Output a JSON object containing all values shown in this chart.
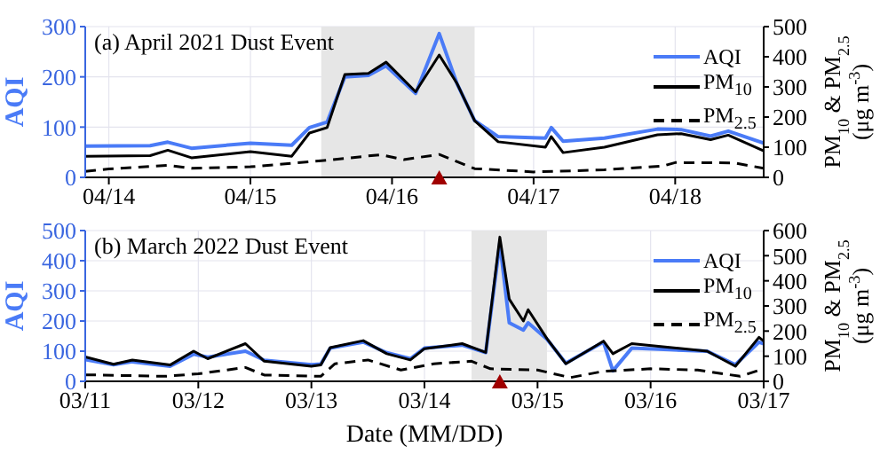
{
  "chart_data": [
    {
      "type": "line",
      "title": "(a) April 2021 Dust Event",
      "ylabel": "AQI",
      "y2label": "PM$_{10}$ & PM$_{2.5}$ (μg m$^{-3}$)",
      "xlim": [
        "2021-04-13T20:00",
        "2021-04-18T15:00"
      ],
      "xticks": [
        {
          "value": "2021-04-14",
          "label": "04/14"
        },
        {
          "value": "2021-04-15",
          "label": "04/15"
        },
        {
          "value": "2021-04-16",
          "label": "04/16"
        },
        {
          "value": "2021-04-17",
          "label": "04/17"
        },
        {
          "value": "2021-04-18",
          "label": "04/18"
        }
      ],
      "ylim": [
        0,
        300
      ],
      "yticks": [
        0,
        100,
        200,
        300
      ],
      "y2lim": [
        0,
        500
      ],
      "y2ticks": [
        0,
        100,
        200,
        300,
        400,
        500
      ],
      "grid": true,
      "legend": "top right",
      "marker": "none",
      "bands": [
        {
          "axis": "x",
          "from": "2021-04-15T12:00",
          "to": "2021-04-16T14:00",
          "color": "#e6e6e6"
        }
      ],
      "series": [
        {
          "name": "AQI",
          "color": "#4a7bf7",
          "line_style": "solid",
          "x": [
            "2021-04-13T20:00",
            "2021-04-14T07:00",
            "2021-04-14T10:00",
            "2021-04-14T14:00",
            "2021-04-15T00:00",
            "2021-04-15T07:00",
            "2021-04-15T10:00",
            "2021-04-15T13:00",
            "2021-04-15T16:00",
            "2021-04-15T20:00",
            "2021-04-15T23:00",
            "2021-04-16T04:00",
            "2021-04-16T08:00",
            "2021-04-16T11:00",
            "2021-04-16T14:00",
            "2021-04-16T18:00",
            "2021-04-17T02:00",
            "2021-04-17T03:00",
            "2021-04-17T05:00",
            "2021-04-17T12:00",
            "2021-04-17T21:00",
            "2021-04-18T01:00",
            "2021-04-18T06:00",
            "2021-04-18T09:00",
            "2021-04-18T15:00"
          ],
          "values": [
            62,
            63,
            70,
            58,
            68,
            64,
            99,
            110,
            200,
            203,
            222,
            167,
            286,
            187,
            113,
            81,
            78,
            99,
            72,
            78,
            96,
            95,
            82,
            92,
            68
          ]
        },
        {
          "name": "PM$_{10}$",
          "color": "#000000",
          "axis": "y2",
          "line_style": "solid",
          "x": [
            "2021-04-13T20:00",
            "2021-04-14T07:00",
            "2021-04-14T10:00",
            "2021-04-14T14:00",
            "2021-04-15T00:00",
            "2021-04-15T07:00",
            "2021-04-15T10:00",
            "2021-04-15T13:00",
            "2021-04-15T16:00",
            "2021-04-15T20:00",
            "2021-04-15T23:00",
            "2021-04-16T04:00",
            "2021-04-16T08:00",
            "2021-04-16T11:00",
            "2021-04-16T14:00",
            "2021-04-16T18:00",
            "2021-04-17T02:00",
            "2021-04-17T03:00",
            "2021-04-17T05:00",
            "2021-04-17T12:00",
            "2021-04-17T21:00",
            "2021-04-18T01:00",
            "2021-04-18T06:00",
            "2021-04-18T09:00",
            "2021-04-18T15:00"
          ],
          "values": [
            70,
            72,
            90,
            65,
            85,
            70,
            147,
            165,
            341,
            345,
            382,
            284,
            406,
            312,
            188,
            118,
            100,
            135,
            82,
            100,
            141,
            145,
            125,
            140,
            88
          ]
        },
        {
          "name": "PM$_{2.5}$",
          "color": "#000000",
          "axis": "y2",
          "line_style": "dashed",
          "x": [
            "2021-04-13T20:00",
            "2021-04-14T00:00",
            "2021-04-14T10:00",
            "2021-04-14T14:00",
            "2021-04-15T00:00",
            "2021-04-15T12:00",
            "2021-04-15T22:00",
            "2021-04-16T02:00",
            "2021-04-16T08:00",
            "2021-04-16T14:00",
            "2021-04-17T00:00",
            "2021-04-17T12:00",
            "2021-04-17T22:00",
            "2021-04-18T00:00",
            "2021-04-18T10:00",
            "2021-04-18T15:00"
          ],
          "values": [
            20,
            28,
            40,
            30,
            35,
            55,
            75,
            59,
            76,
            29,
            18,
            25,
            38,
            49,
            48,
            30
          ]
        },
        {
          "type": "scatter",
          "marker": "triangle",
          "color": "#a00000",
          "x": [
            "2021-04-16T08:00"
          ],
          "values": [
            0
          ]
        }
      ]
    },
    {
      "type": "line",
      "title": "(b) March 2022 Dust Event",
      "xlabel": "Date (MM/DD)",
      "ylabel": "AQI",
      "y2label": "PM$_{10}$ & PM$_{2.5}$ (μg m$^{-3}$)",
      "xlim": [
        "2022-03-11",
        "2022-03-17"
      ],
      "xticks": [
        {
          "value": "2022-03-11",
          "label": "03/11"
        },
        {
          "value": "2022-03-12",
          "label": "03/12"
        },
        {
          "value": "2022-03-13",
          "label": "03/13"
        },
        {
          "value": "2022-03-14",
          "label": "03/14"
        },
        {
          "value": "2022-03-15",
          "label": "03/15"
        },
        {
          "value": "2022-03-16",
          "label": "03/16"
        },
        {
          "value": "2022-03-17",
          "label": "03/17"
        }
      ],
      "ylim": [
        0,
        500
      ],
      "yticks": [
        0,
        100,
        200,
        300,
        400,
        500
      ],
      "y2lim": [
        0,
        600
      ],
      "y2ticks": [
        0,
        100,
        200,
        300,
        400,
        500,
        600
      ],
      "grid": true,
      "legend": "top right",
      "marker": "none",
      "bands": [
        {
          "axis": "x",
          "from": "2022-03-14T10:00",
          "to": "2022-03-15T02:00",
          "color": "#e6e6e6"
        }
      ],
      "series": [
        {
          "name": "AQI",
          "color": "#4a7bf7",
          "line_style": "solid",
          "x": [
            "2022-03-11T00:00",
            "2022-03-11T06:00",
            "2022-03-11T10:00",
            "2022-03-11T18:00",
            "2022-03-11T23:00",
            "2022-03-12T02:00",
            "2022-03-12T10:00",
            "2022-03-12T14:00",
            "2022-03-13T00:00",
            "2022-03-13T02:00",
            "2022-03-13T04:00",
            "2022-03-13T11:00",
            "2022-03-13T16:00",
            "2022-03-13T21:00",
            "2022-03-14T00:00",
            "2022-03-14T08:00",
            "2022-03-14T13:00",
            "2022-03-14T16:00",
            "2022-03-14T18:00",
            "2022-03-14T21:00",
            "2022-03-14T22:00",
            "2022-03-15T02:00",
            "2022-03-15T06:00",
            "2022-03-15T14:00",
            "2022-03-15T16:00",
            "2022-03-15T20:00",
            "2022-03-16T04:00",
            "2022-03-16T12:00",
            "2022-03-16T18:00",
            "2022-03-16T23:00",
            "2022-03-17T00:00"
          ],
          "values": [
            72,
            55,
            65,
            50,
            90,
            80,
            100,
            70,
            55,
            57,
            110,
            130,
            95,
            75,
            110,
            120,
            95,
            459,
            194,
            170,
            194,
            140,
            60,
            130,
            35,
            110,
            105,
            100,
            55,
            130,
            125
          ]
        },
        {
          "name": "PM$_{10}$",
          "color": "#000000",
          "axis": "y2",
          "line_style": "solid",
          "x": [
            "2022-03-11T00:00",
            "2022-03-11T06:00",
            "2022-03-11T10:00",
            "2022-03-11T18:00",
            "2022-03-11T23:00",
            "2022-03-12T02:00",
            "2022-03-12T10:00",
            "2022-03-12T14:00",
            "2022-03-13T00:00",
            "2022-03-13T02:00",
            "2022-03-13T04:00",
            "2022-03-13T11:00",
            "2022-03-13T16:00",
            "2022-03-13T21:00",
            "2022-03-14T00:00",
            "2022-03-14T08:00",
            "2022-03-14T13:00",
            "2022-03-14T16:00",
            "2022-03-14T18:00",
            "2022-03-14T21:00",
            "2022-03-14T22:00",
            "2022-03-15T02:00",
            "2022-03-15T06:00",
            "2022-03-15T14:00",
            "2022-03-15T16:00",
            "2022-03-15T20:00",
            "2022-03-16T04:00",
            "2022-03-16T12:00",
            "2022-03-16T18:00",
            "2022-03-16T23:00",
            "2022-03-17T00:00"
          ],
          "values": [
            97,
            68,
            85,
            65,
            120,
            90,
            150,
            80,
            60,
            65,
            134,
            162,
            110,
            85,
            130,
            150,
            115,
            574,
            327,
            240,
            285,
            170,
            70,
            160,
            110,
            150,
            135,
            120,
            60,
            175,
            160
          ]
        },
        {
          "name": "PM$_{2.5}$",
          "color": "#000000",
          "axis": "y2",
          "line_style": "dashed",
          "x": [
            "2022-03-11T00:00",
            "2022-03-11T17:00",
            "2022-03-12T00:00",
            "2022-03-12T10:00",
            "2022-03-12T14:00",
            "2022-03-13T02:00",
            "2022-03-13T05:00",
            "2022-03-13T12:00",
            "2022-03-13T19:00",
            "2022-03-14T02:00",
            "2022-03-14T10:00",
            "2022-03-14T14:00",
            "2022-03-15T00:00",
            "2022-03-15T07:00",
            "2022-03-15T14:00",
            "2022-03-16T00:00",
            "2022-03-16T10:00",
            "2022-03-16T19:00",
            "2022-03-17T00:00"
          ],
          "values": [
            26,
            20,
            30,
            55,
            25,
            20,
            70,
            85,
            45,
            70,
            80,
            50,
            45,
            15,
            40,
            50,
            45,
            20,
            50
          ]
        },
        {
          "type": "scatter",
          "marker": "triangle",
          "color": "#a00000",
          "x": [
            "2022-03-14T16:00"
          ],
          "values": [
            0
          ]
        }
      ]
    }
  ]
}
